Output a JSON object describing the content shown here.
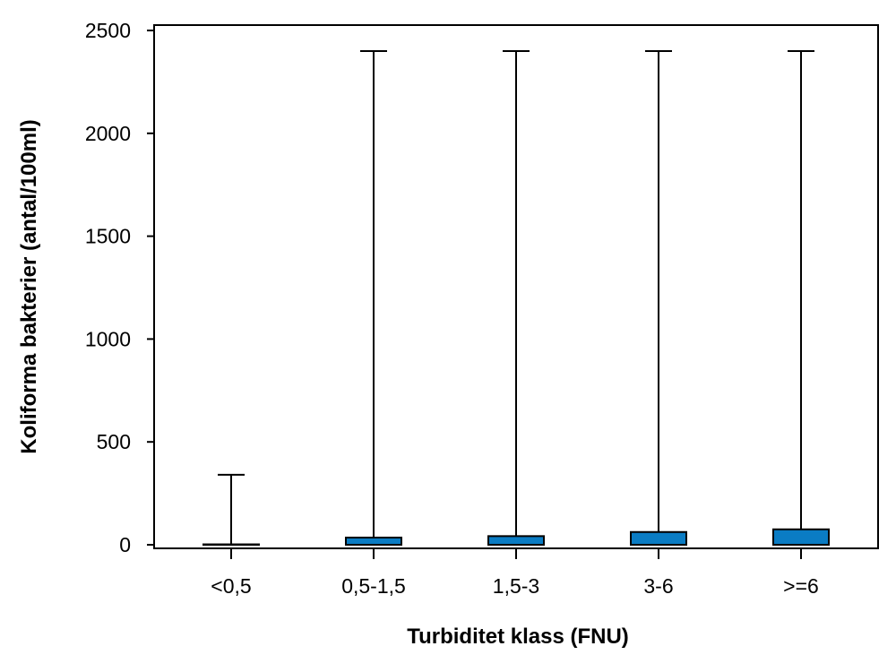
{
  "chart_data": {
    "type": "box",
    "title": "",
    "xlabel": "Turbiditet klass (FNU)",
    "ylabel": "Koliforma bakterier (antal/100ml)",
    "ylim": [
      0,
      2500
    ],
    "yticks": [
      0,
      500,
      1000,
      1500,
      2000,
      2500
    ],
    "grid": false,
    "categories": [
      "<0,5",
      "0,5-1,5",
      "1,5-3",
      "3-6",
      ">=6"
    ],
    "series": [
      {
        "boxes": [
          {
            "category": "<0,5",
            "min": 0,
            "q1": 0,
            "median": 0,
            "q3": 2,
            "max": 340
          },
          {
            "category": "0,5-1,5",
            "min": 0,
            "q1": 0,
            "median": 0,
            "q3": 35,
            "max": 2400
          },
          {
            "category": "1,5-3",
            "min": 0,
            "q1": 0,
            "median": 0,
            "q3": 42,
            "max": 2400
          },
          {
            "category": "3-6",
            "min": 0,
            "q1": 0,
            "median": 0,
            "q3": 62,
            "max": 2400
          },
          {
            "category": ">=6",
            "min": 0,
            "q1": 0,
            "median": 0,
            "q3": 75,
            "max": 2400
          }
        ]
      }
    ],
    "box_color": "#0a7cc4",
    "line_color": "#000000"
  }
}
